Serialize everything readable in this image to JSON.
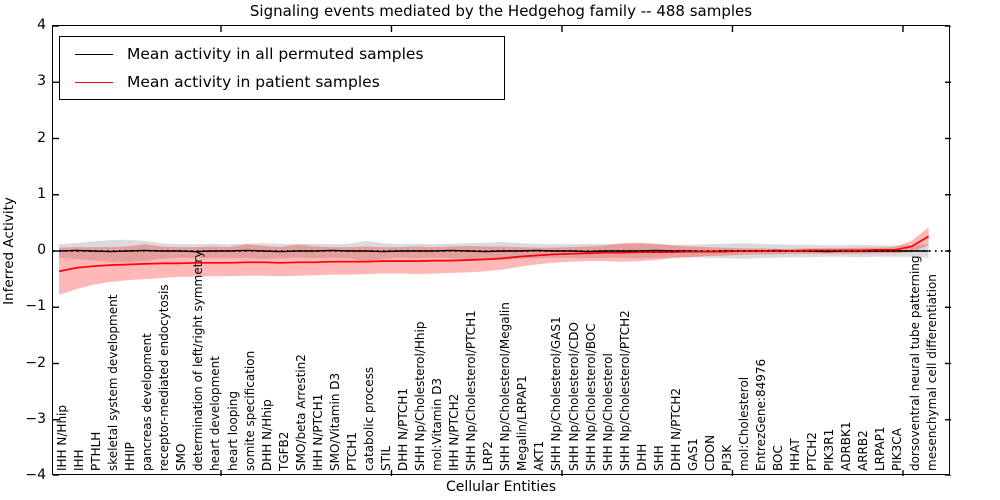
{
  "figure": {
    "title": "Signaling events mediated by the Hedgehog family -- 488 samples",
    "xlabel": "Cellular Entities",
    "ylabel": "Inferred Activity"
  },
  "legend": {
    "entries": [
      {
        "label": "Mean activity in all permuted samples",
        "color": "#000000"
      },
      {
        "label": "Mean activity in patient samples",
        "color": "#ff0000"
      }
    ]
  },
  "chart_data": {
    "type": "line",
    "title": "Signaling events mediated by the Hedgehog family -- 488 samples",
    "xlabel": "Cellular Entities",
    "ylabel": "Inferred Activity",
    "ylim": [
      -4,
      4
    ],
    "grid": false,
    "legend_position": "upper left",
    "zero_line": {
      "style": "dotted",
      "color": "#000000"
    },
    "yticks": [
      {
        "v": 4,
        "label": "4"
      },
      {
        "v": 3,
        "label": "3"
      },
      {
        "v": 2,
        "label": "2"
      },
      {
        "v": 1,
        "label": "1"
      },
      {
        "v": 0,
        "label": "0"
      },
      {
        "v": -1,
        "label": "−1"
      },
      {
        "v": -2,
        "label": "−2"
      },
      {
        "v": -3,
        "label": "−3"
      },
      {
        "v": -4,
        "label": "−4"
      }
    ],
    "categories": [
      "IHH N/Hhip",
      "IHH",
      "PTHLH",
      "skeletal system development",
      "HHIP",
      "pancreas development",
      "receptor-mediated endocytosis",
      "SMO",
      "determination of left/right symmetry",
      "heart development",
      "heart looping",
      "somite specification",
      "DHH N/Hhip",
      "TGFB2",
      "SMO/beta Arrestin2",
      "IHH N/PTCH1",
      "SMO/Vitamin D3",
      "PTCH1",
      "catabolic process",
      "STIL",
      "DHH N/PTCH1",
      "SHH Np/Cholesterol/Hhip",
      "mol:Vitamin D3",
      "IHH N/PTCH2",
      "SHH Np/Cholesterol/PTCH1",
      "LRP2",
      "SHH Np/Cholesterol/Megalin",
      "Megalin/LRPAP1",
      "AKT1",
      "SHH Np/Cholesterol/GAS1",
      "SHH Np/Cholesterol/CDO",
      "SHH Np/Cholesterol/BOC",
      "SHH Np/Cholesterol",
      "SHH Np/Cholesterol/PTCH2",
      "DHH",
      "SHH",
      "DHH N/PTCH2",
      "GAS1",
      "CDON",
      "PI3K",
      "mol:Cholesterol",
      "EntrezGene:84976",
      "BOC",
      "HHAT",
      "PTCH2",
      "PIK3R1",
      "ADRBK1",
      "ARRB2",
      "LRPAP1",
      "PIK3CA",
      "dorsoventral neural tube patterning",
      "mesenchymal cell differentiation"
    ],
    "series": [
      {
        "name": "Mean activity in all permuted samples",
        "color": "#000000",
        "line_width": 1.4,
        "band_color": "rgba(0,0,0,0.14)",
        "values": [
          0.0,
          0.01,
          0.0,
          -0.01,
          0.0,
          0.01,
          0.0,
          0.0,
          -0.01,
          0.0,
          0.0,
          0.01,
          0.0,
          -0.01,
          0.0,
          0.0,
          0.01,
          0.0,
          0.0,
          -0.01,
          0.0,
          0.0,
          0.0,
          0.01,
          0.0,
          -0.01,
          0.0,
          0.0,
          0.01,
          0.0,
          0.0,
          -0.01,
          0.0,
          0.0,
          0.0,
          0.01,
          0.0,
          0.0,
          -0.01,
          0.0,
          0.0,
          0.0,
          0.01,
          0.0,
          0.0,
          -0.01,
          0.0,
          0.0,
          0.0,
          0.0,
          0.0,
          0.0
        ],
        "band_upper": [
          0.12,
          0.14,
          0.17,
          0.19,
          0.2,
          0.18,
          0.14,
          0.12,
          0.12,
          0.13,
          0.12,
          0.13,
          0.14,
          0.13,
          0.12,
          0.13,
          0.12,
          0.13,
          0.18,
          0.14,
          0.12,
          0.13,
          0.12,
          0.13,
          0.14,
          0.15,
          0.16,
          0.14,
          0.13,
          0.12,
          0.12,
          0.13,
          0.12,
          0.12,
          0.13,
          0.12,
          0.11,
          0.11,
          0.12,
          0.13,
          0.14,
          0.13,
          0.12,
          0.11,
          0.11,
          0.1,
          0.1,
          0.11,
          0.1,
          0.1,
          0.1,
          0.12
        ],
        "band_lower": [
          -0.12,
          -0.14,
          -0.17,
          -0.19,
          -0.2,
          -0.18,
          -0.14,
          -0.12,
          -0.12,
          -0.13,
          -0.12,
          -0.13,
          -0.14,
          -0.13,
          -0.12,
          -0.13,
          -0.12,
          -0.13,
          -0.18,
          -0.14,
          -0.12,
          -0.13,
          -0.12,
          -0.13,
          -0.14,
          -0.15,
          -0.16,
          -0.14,
          -0.13,
          -0.12,
          -0.12,
          -0.13,
          -0.12,
          -0.12,
          -0.13,
          -0.12,
          -0.11,
          -0.11,
          -0.12,
          -0.13,
          -0.14,
          -0.13,
          -0.12,
          -0.11,
          -0.11,
          -0.1,
          -0.1,
          -0.11,
          -0.1,
          -0.1,
          -0.1,
          -0.12
        ]
      },
      {
        "name": "Mean activity in patient samples",
        "color": "#ff0000",
        "line_width": 1.7,
        "band_color": "rgba(255,0,0,0.28)",
        "values": [
          -0.36,
          -0.3,
          -0.27,
          -0.25,
          -0.24,
          -0.23,
          -0.22,
          -0.22,
          -0.21,
          -0.21,
          -0.21,
          -0.2,
          -0.2,
          -0.21,
          -0.2,
          -0.2,
          -0.19,
          -0.19,
          -0.19,
          -0.18,
          -0.18,
          -0.18,
          -0.17,
          -0.17,
          -0.16,
          -0.15,
          -0.13,
          -0.1,
          -0.08,
          -0.06,
          -0.05,
          -0.04,
          -0.03,
          -0.03,
          -0.02,
          -0.02,
          -0.02,
          -0.01,
          -0.01,
          -0.01,
          0.0,
          0.0,
          0.0,
          0.0,
          0.01,
          0.01,
          0.01,
          0.01,
          0.02,
          0.02,
          0.08,
          0.26
        ],
        "band_upper": [
          0.06,
          0.07,
          0.07,
          0.07,
          0.08,
          0.12,
          0.08,
          0.07,
          0.07,
          0.08,
          0.07,
          0.12,
          0.09,
          0.07,
          0.12,
          0.08,
          0.07,
          0.07,
          0.08,
          0.07,
          0.07,
          0.08,
          0.07,
          0.08,
          0.09,
          0.08,
          0.08,
          0.07,
          0.06,
          0.06,
          0.07,
          0.08,
          0.1,
          0.14,
          0.15,
          0.13,
          0.1,
          0.08,
          0.07,
          0.06,
          0.05,
          0.05,
          0.04,
          0.04,
          0.05,
          0.05,
          0.05,
          0.06,
          0.06,
          0.07,
          0.18,
          0.42
        ],
        "band_lower": [
          -0.78,
          -0.68,
          -0.6,
          -0.55,
          -0.52,
          -0.5,
          -0.48,
          -0.46,
          -0.46,
          -0.45,
          -0.45,
          -0.44,
          -0.44,
          -0.45,
          -0.44,
          -0.43,
          -0.42,
          -0.42,
          -0.41,
          -0.4,
          -0.4,
          -0.41,
          -0.4,
          -0.39,
          -0.38,
          -0.36,
          -0.33,
          -0.28,
          -0.24,
          -0.21,
          -0.19,
          -0.18,
          -0.18,
          -0.19,
          -0.18,
          -0.16,
          -0.13,
          -0.11,
          -0.09,
          -0.08,
          -0.07,
          -0.06,
          -0.06,
          -0.05,
          -0.05,
          -0.05,
          -0.05,
          -0.05,
          -0.04,
          -0.04,
          -0.02,
          0.1
        ]
      }
    ]
  }
}
